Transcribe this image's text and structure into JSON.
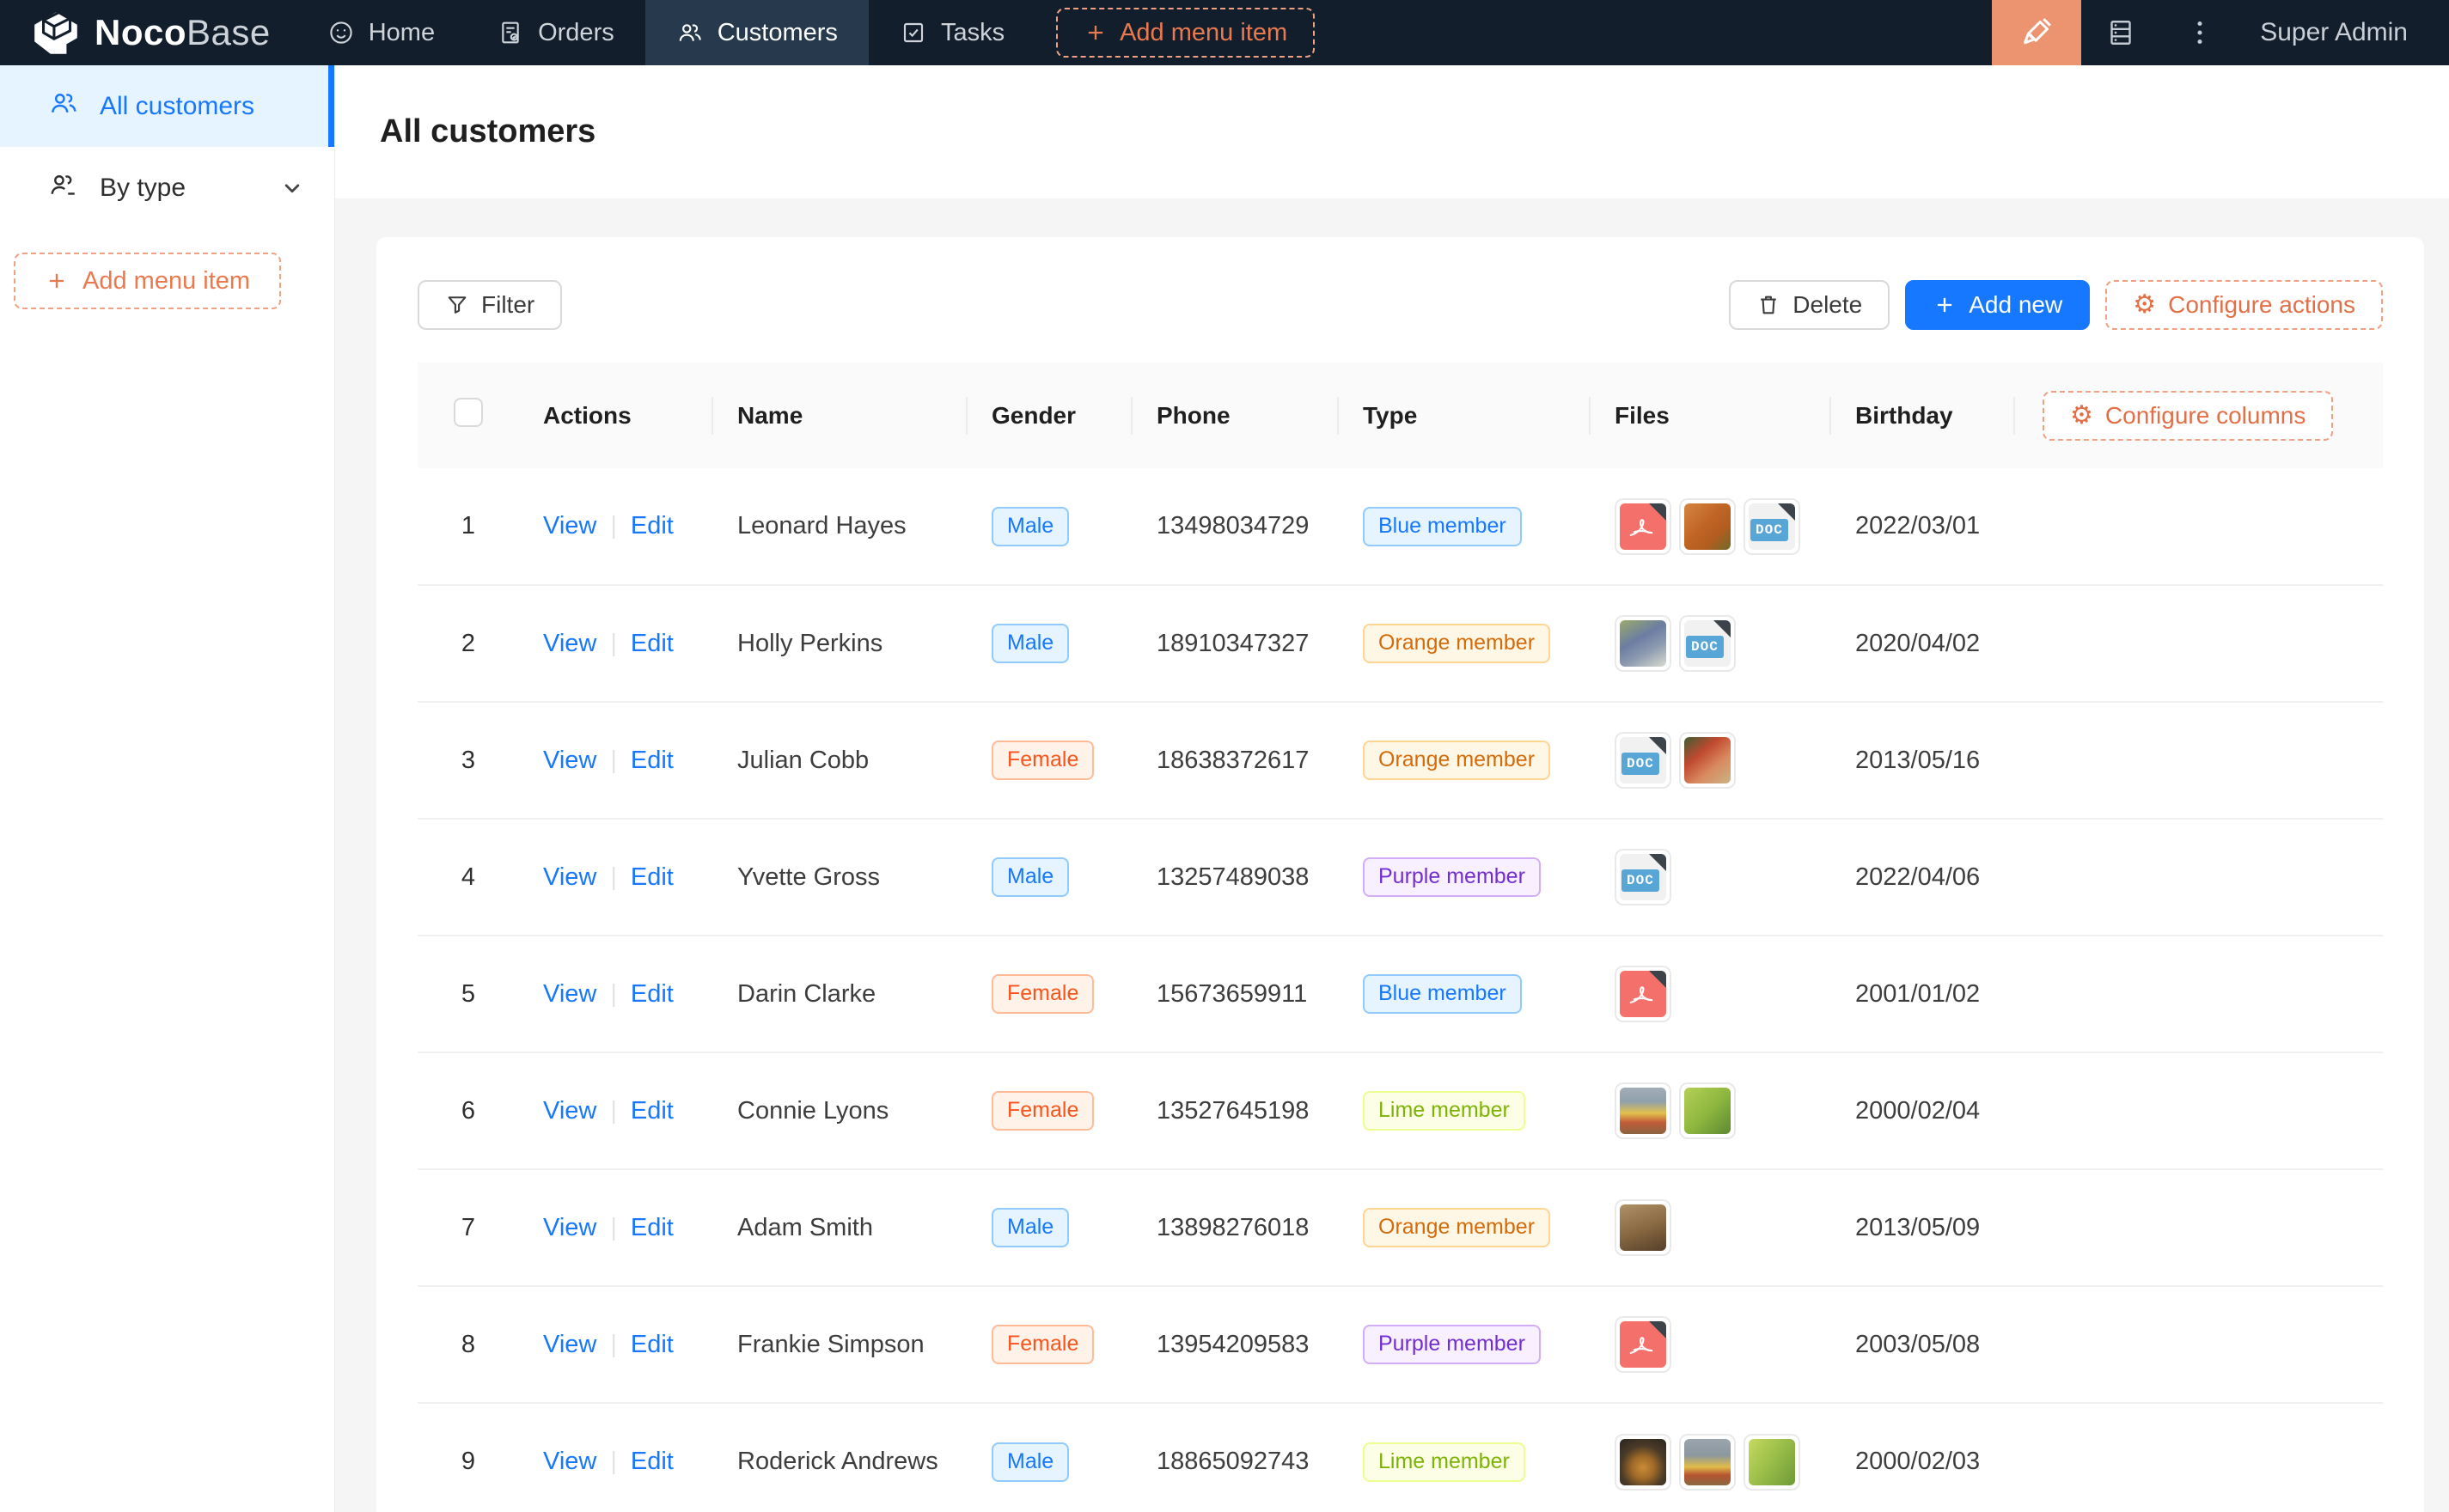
{
  "navbar": {
    "logo": {
      "bold": "Noco",
      "light": "Base"
    },
    "items": [
      {
        "label": "Home",
        "icon": "smiley-icon",
        "active": false
      },
      {
        "label": "Orders",
        "icon": "order-icon",
        "active": false
      },
      {
        "label": "Customers",
        "icon": "usergroup-icon",
        "active": true
      },
      {
        "label": "Tasks",
        "icon": "task-icon",
        "active": false
      }
    ],
    "add_menu_item_label": "Add menu item",
    "user_label": "Super Admin"
  },
  "sidebar": {
    "items": [
      {
        "label": "All customers",
        "icon": "usergroup-icon",
        "active": true,
        "chevron": false
      },
      {
        "label": "By type",
        "icon": "usergroup-dash-icon",
        "active": false,
        "chevron": true
      }
    ],
    "add_menu_item_label": "Add menu item"
  },
  "page": {
    "title": "All customers"
  },
  "toolbar": {
    "filter_label": "Filter",
    "delete_label": "Delete",
    "add_new_label": "Add new",
    "configure_actions_label": "Configure actions"
  },
  "table": {
    "columns": [
      "Actions",
      "Name",
      "Gender",
      "Phone",
      "Type",
      "Files",
      "Birthday"
    ],
    "configure_columns_label": "Configure columns",
    "action_links": [
      "View",
      "Edit"
    ],
    "doc_badge_label": "DOC",
    "tag_styles": {
      "Male": {
        "bg": "#e6f4ff",
        "border": "#91caff",
        "text": "#1677ff"
      },
      "Female": {
        "bg": "#fff2e8",
        "border": "#ffbb96",
        "text": "#fa541c"
      },
      "Blue member": {
        "bg": "#e6f4ff",
        "border": "#91caff",
        "text": "#1677ff"
      },
      "Orange member": {
        "bg": "#fff7e6",
        "border": "#ffd591",
        "text": "#d46b08"
      },
      "Purple member": {
        "bg": "#f9f0ff",
        "border": "#d3adf7",
        "text": "#722ed1"
      },
      "Lime member": {
        "bg": "#fcffe6",
        "border": "#eaff8f",
        "text": "#7cb305"
      }
    },
    "rows": [
      {
        "index": 1,
        "name": "Leonard Hayes",
        "gender": "Male",
        "phone": "13498034729",
        "type": "Blue member",
        "files": [
          {
            "kind": "pdf"
          },
          {
            "kind": "image",
            "variant": "orange-food"
          },
          {
            "kind": "doc"
          }
        ],
        "birthday": "2022/03/01"
      },
      {
        "index": 2,
        "name": "Holly Perkins",
        "gender": "Male",
        "phone": "18910347327",
        "type": "Orange member",
        "files": [
          {
            "kind": "image",
            "variant": "outdoor-people"
          },
          {
            "kind": "doc"
          }
        ],
        "birthday": "2020/04/02"
      },
      {
        "index": 3,
        "name": "Julian Cobb",
        "gender": "Female",
        "phone": "18638372617",
        "type": "Orange member",
        "files": [
          {
            "kind": "doc"
          },
          {
            "kind": "image",
            "variant": "red-food"
          }
        ],
        "birthday": "2013/05/16"
      },
      {
        "index": 4,
        "name": "Yvette Gross",
        "gender": "Male",
        "phone": "13257489038",
        "type": "Purple member",
        "files": [
          {
            "kind": "doc"
          }
        ],
        "birthday": "2022/04/06"
      },
      {
        "index": 5,
        "name": "Darin Clarke",
        "gender": "Female",
        "phone": "15673659911",
        "type": "Blue member",
        "files": [
          {
            "kind": "pdf"
          }
        ],
        "birthday": "2001/01/02"
      },
      {
        "index": 6,
        "name": "Connie Lyons",
        "gender": "Female",
        "phone": "13527645198",
        "type": "Lime member",
        "files": [
          {
            "kind": "image",
            "variant": "fruit-sky"
          },
          {
            "kind": "image",
            "variant": "lettuce"
          }
        ],
        "birthday": "2000/02/04"
      },
      {
        "index": 7,
        "name": "Adam Smith",
        "gender": "Male",
        "phone": "13898276018",
        "type": "Orange member",
        "files": [
          {
            "kind": "image",
            "variant": "brown-food"
          }
        ],
        "birthday": "2013/05/09"
      },
      {
        "index": 8,
        "name": "Frankie Simpson",
        "gender": "Female",
        "phone": "13954209583",
        "type": "Purple member",
        "files": [
          {
            "kind": "pdf"
          }
        ],
        "birthday": "2003/05/08"
      },
      {
        "index": 9,
        "name": "Roderick Andrews",
        "gender": "Male",
        "phone": "18865092743",
        "type": "Lime member",
        "files": [
          {
            "kind": "image",
            "variant": "dark-fruit"
          },
          {
            "kind": "image",
            "variant": "fruit-table"
          },
          {
            "kind": "image",
            "variant": "lettuce2"
          }
        ],
        "birthday": "2000/02/03"
      }
    ]
  },
  "colors": {
    "primary": "#1677ff",
    "accent_orange": "#e9794e",
    "navbar_bg": "#131e2d",
    "ui_editor_bg": "#ec9370"
  }
}
